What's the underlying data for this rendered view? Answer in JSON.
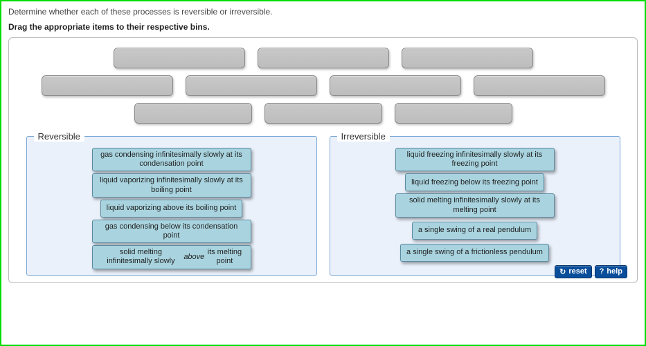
{
  "question": "Determine whether each of these processes is reversible or irreversible.",
  "instruction": "Drag the appropriate items to their respective bins.",
  "tray": {
    "rows": [
      {
        "count": 3,
        "widthClass": ""
      },
      {
        "count": 4,
        "widthClass": ""
      },
      {
        "count": 3,
        "widthClass": "narrow"
      }
    ]
  },
  "bins": {
    "reversible": {
      "label": "Reversible",
      "items": [
        "gas condensing infinitesimally slowly at its condensation point",
        "liquid vaporizing infinitesimally slowly at its boiling point",
        "liquid vaporizing above its boiling point",
        "gas condensing below its condensation point",
        "solid melting infinitesimally slowly <em>above</em> its melting point"
      ]
    },
    "irreversible": {
      "label": "Irreversible",
      "items_stack": [
        "liquid freezing infinitesimally slowly at its freezing point",
        "liquid freezing below its freezing point",
        "solid melting infinitesimally slowly at its melting point"
      ],
      "items_row": [
        "a single swing of a real pendulum",
        "a single swing of a frictionless pendulum"
      ]
    }
  },
  "footer": {
    "reset_label": "reset",
    "reset_icon": "↻",
    "help_label": "help",
    "help_icon": "?"
  },
  "colors": {
    "frame_border": "#00dd00",
    "panel_border": "#bbbbbb",
    "slot_bg": "#c0c0c0",
    "slot_border": "#888888",
    "bin_bg": "#eaf1fb",
    "bin_border": "#7aa6d6",
    "tile_bg": "#a9d4df",
    "tile_border": "#5b8aa0",
    "button_bg": "#0a4e9b"
  }
}
